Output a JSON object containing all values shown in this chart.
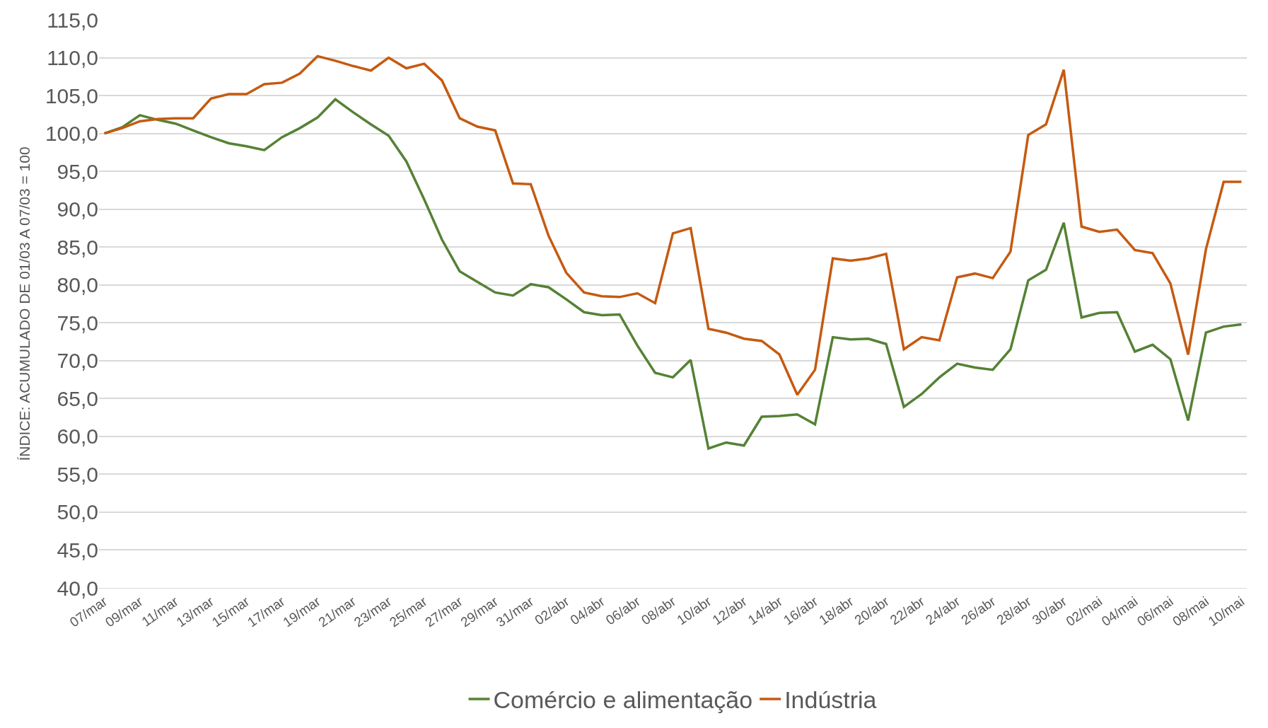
{
  "chart_data": {
    "type": "line",
    "ylabel": "ÍNDICE: ACUMULADO DE 01/03 A 07/03 = 100",
    "categories": [
      "07/mar",
      null,
      "09/mar",
      null,
      "11/mar",
      null,
      "13/mar",
      null,
      "15/mar",
      null,
      "17/mar",
      null,
      "19/mar",
      null,
      "21/mar",
      null,
      "23/mar",
      null,
      "25/mar",
      null,
      "27/mar",
      null,
      "29/mar",
      null,
      "31/mar",
      null,
      "02/abr",
      null,
      "04/abr",
      null,
      "06/abr",
      null,
      "08/abr",
      null,
      "10/abr",
      null,
      "12/abr",
      null,
      "14/abr",
      null,
      "16/abr",
      null,
      "18/abr",
      null,
      "20/abr",
      null,
      "22/abr",
      null,
      "24/abr",
      null,
      "26/abr",
      null,
      "28/abr",
      null,
      "30/abr",
      null,
      "02/mai",
      null,
      "04/mai",
      null,
      "06/mai",
      null,
      "08/mai",
      null,
      "10/mai"
    ],
    "series": [
      {
        "name": "Comércio e alimentação",
        "color": "#548235",
        "values": [
          100.0,
          100.8,
          102.4,
          101.8,
          101.3,
          100.4,
          99.5,
          98.7,
          98.3,
          97.8,
          99.5,
          100.7,
          102.1,
          104.5,
          102.8,
          101.2,
          99.7,
          96.3,
          91.3,
          86.0,
          81.8,
          80.4,
          79.0,
          78.6,
          80.1,
          79.7,
          78.1,
          76.4,
          76.0,
          76.1,
          72.0,
          68.4,
          67.8,
          70.1,
          58.4,
          59.2,
          58.8,
          62.6,
          62.7,
          62.9,
          61.6,
          73.1,
          72.8,
          72.9,
          72.2,
          63.9,
          65.6,
          67.8,
          69.6,
          69.1,
          68.8,
          71.5,
          80.6,
          82.0,
          88.2,
          75.7,
          76.3,
          76.4,
          71.2,
          72.1,
          70.2,
          62.1,
          73.7,
          74.5,
          74.8
        ]
      },
      {
        "name": "Indústria",
        "color": "#c55a11",
        "values": [
          100.0,
          100.7,
          101.6,
          101.9,
          102.0,
          102.0,
          104.6,
          105.2,
          105.2,
          106.5,
          106.7,
          107.9,
          110.2,
          109.6,
          108.9,
          108.3,
          110.0,
          108.6,
          109.2,
          107.0,
          102.0,
          100.9,
          100.4,
          93.4,
          93.3,
          86.5,
          81.6,
          79.0,
          78.5,
          78.4,
          78.9,
          77.6,
          86.8,
          87.5,
          74.2,
          73.7,
          72.9,
          72.6,
          70.8,
          65.5,
          68.8,
          83.5,
          83.2,
          83.5,
          84.1,
          71.5,
          73.1,
          72.7,
          81.0,
          81.5,
          80.9,
          84.4,
          99.8,
          101.2,
          108.4,
          87.7,
          87.0,
          87.3,
          84.6,
          84.2,
          80.2,
          70.8,
          84.7,
          93.6,
          93.6
        ]
      }
    ],
    "ylim": [
      40,
      115
    ],
    "yticks": [
      {
        "value": 40,
        "label": "40,0"
      },
      {
        "value": 45,
        "label": "45,0"
      },
      {
        "value": 50,
        "label": "50,0"
      },
      {
        "value": 55,
        "label": "55,0"
      },
      {
        "value": 60,
        "label": "60,0"
      },
      {
        "value": 65,
        "label": "65,0"
      },
      {
        "value": 70,
        "label": "70,0"
      },
      {
        "value": 75,
        "label": "75,0"
      },
      {
        "value": 80,
        "label": "80,0"
      },
      {
        "value": 85,
        "label": "85,0"
      },
      {
        "value": 90,
        "label": "90,0"
      },
      {
        "value": 95,
        "label": "95,0"
      },
      {
        "value": 100,
        "label": "100,0"
      },
      {
        "value": 105,
        "label": "105,0"
      },
      {
        "value": 110,
        "label": "110,0"
      },
      {
        "value": 115,
        "label": "115,0"
      }
    ],
    "grid": "y",
    "legend": "bottom",
    "marker": "none",
    "line_style": "solid"
  }
}
